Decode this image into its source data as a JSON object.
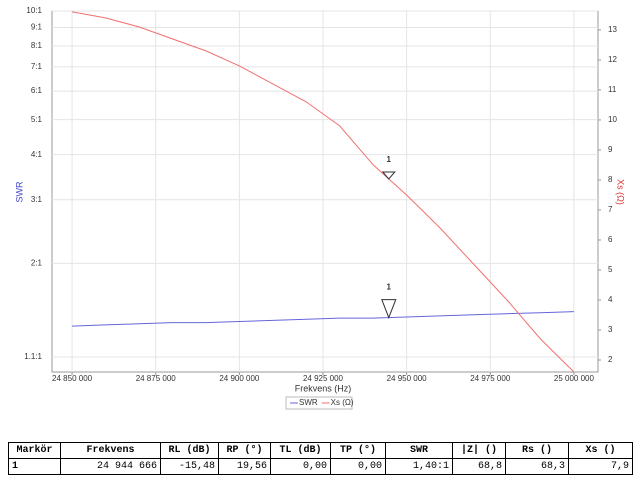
{
  "chart_data": {
    "type": "line",
    "x_label": "Frekvens (Hz)",
    "y_label": "SWR",
    "y2_label": "Xs (Ω)",
    "x": [
      24850000,
      24860000,
      24870000,
      24880000,
      24890000,
      24900000,
      24910000,
      24920000,
      24930000,
      24940000,
      24950000,
      24960000,
      24970000,
      24980000,
      24990000,
      25000000
    ],
    "series": [
      {
        "name": "SWR",
        "color": "#6666dd",
        "values": [
          1.34,
          1.35,
          1.36,
          1.37,
          1.37,
          1.38,
          1.39,
          1.4,
          1.41,
          1.41,
          1.42,
          1.43,
          1.44,
          1.45,
          1.46,
          1.47
        ]
      },
      {
        "name": "Xs (Ω)",
        "color": "#f07070",
        "axis": "y2",
        "values": [
          13.6,
          13.4,
          13.1,
          12.7,
          12.3,
          11.8,
          11.2,
          10.6,
          9.8,
          8.5,
          7.5,
          6.4,
          5.2,
          4.0,
          2.7,
          1.6
        ]
      }
    ],
    "xlim": [
      24844000,
      25007200
    ],
    "xticks": [
      {
        "value": 24850000,
        "label": "24 850 000"
      },
      {
        "value": 24875000,
        "label": "24 875 000"
      },
      {
        "value": 24900000,
        "label": "24 900 000"
      },
      {
        "value": 24925000,
        "label": "24 925 000"
      },
      {
        "value": 24950000,
        "label": "24 950 000"
      },
      {
        "value": 24975000,
        "label": "24 975 000"
      },
      {
        "value": 25000000,
        "label": "25 000 000"
      }
    ],
    "ylim": [
      1,
      10
    ],
    "log_y": true,
    "yticks": [
      {
        "value": 1.1,
        "label": "1.1:1"
      },
      {
        "value": 2,
        "label": "2:1"
      },
      {
        "value": 3,
        "label": "3:1"
      },
      {
        "value": 4,
        "label": "4:1"
      },
      {
        "value": 5,
        "label": "5:1"
      },
      {
        "value": 6,
        "label": "6:1"
      },
      {
        "value": 7,
        "label": "7:1"
      },
      {
        "value": 8,
        "label": "8:1"
      },
      {
        "value": 9,
        "label": "9:1"
      },
      {
        "value": 10,
        "label": "10:1"
      }
    ],
    "y2lim": [
      1.6,
      13.63
    ],
    "y2ticks": [
      2,
      3,
      4,
      5,
      6,
      7,
      8,
      9,
      10,
      11,
      12,
      13
    ],
    "grid": true,
    "markers": [
      {
        "label": "1",
        "x": 24944666
      }
    ]
  },
  "table": {
    "header": [
      "Markör",
      "Frekvens",
      "RL (dB)",
      "RP (°)",
      "TL (dB)",
      "TP (°)",
      "SWR",
      "|Z| ()",
      "Rs ()",
      "Xs ()"
    ],
    "rows": [
      [
        "1",
        "24 944 666",
        "-15,48",
        "19,56",
        "0,00",
        "0,00",
        "1,40:1",
        "68,8",
        "68,3",
        "7,9"
      ]
    ]
  }
}
